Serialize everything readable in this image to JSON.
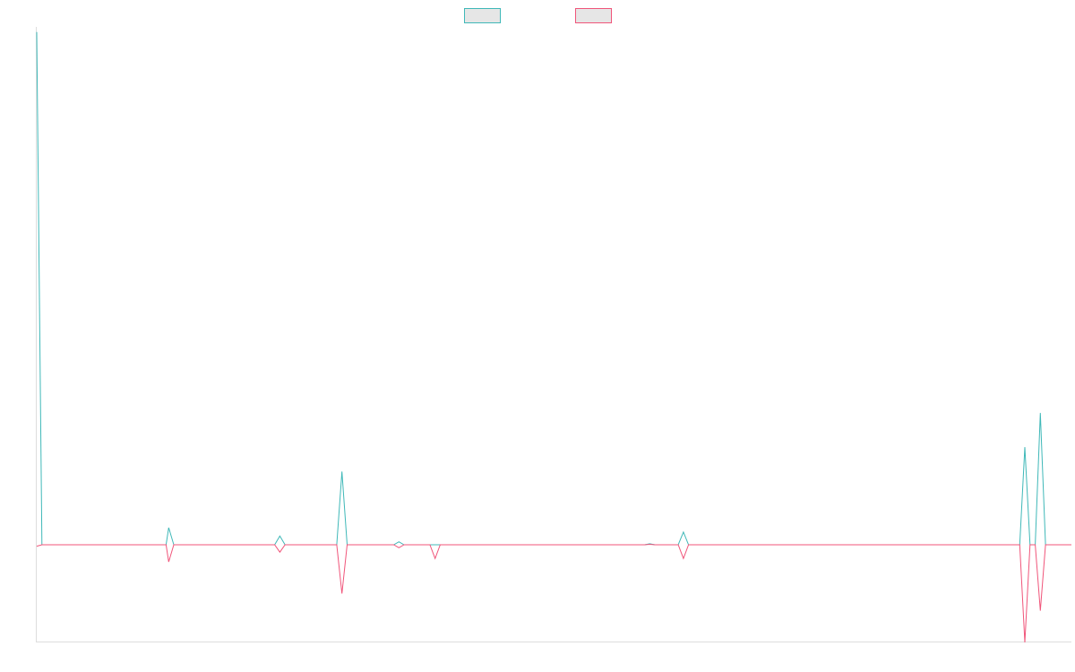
{
  "chart_data": {
    "type": "line",
    "title": "",
    "xlabel": "",
    "ylabel": "",
    "grid": false,
    "legend_position": "top-center",
    "x_range": [
      0,
      40
    ],
    "ylim": [
      -20,
      105
    ],
    "colors": {
      "axis": "#dddddd"
    },
    "series": [
      {
        "color": "#3fb8b8",
        "points": [
          [
            0,
            105
          ],
          [
            0.2,
            0
          ],
          [
            5,
            0
          ],
          [
            5.1,
            3.5
          ],
          [
            5.3,
            0
          ],
          [
            9.2,
            0
          ],
          [
            9.4,
            1.8
          ],
          [
            9.6,
            0
          ],
          [
            11.6,
            0
          ],
          [
            11.8,
            15
          ],
          [
            12,
            0
          ],
          [
            13.8,
            0
          ],
          [
            14,
            0.6
          ],
          [
            14.2,
            0
          ],
          [
            23.5,
            0
          ],
          [
            23.7,
            0.2
          ],
          [
            23.9,
            0
          ],
          [
            24.8,
            0
          ],
          [
            25,
            2.6
          ],
          [
            25.2,
            0
          ],
          [
            38,
            0
          ],
          [
            38.2,
            20
          ],
          [
            38.4,
            0
          ],
          [
            38.6,
            0
          ],
          [
            38.8,
            27
          ],
          [
            39,
            0
          ],
          [
            40,
            0
          ]
        ]
      },
      {
        "color": "#f0557a",
        "points": [
          [
            0,
            -0.3
          ],
          [
            0.2,
            0
          ],
          [
            5,
            0
          ],
          [
            5.1,
            -3.5
          ],
          [
            5.3,
            0
          ],
          [
            9.2,
            0
          ],
          [
            9.4,
            -1.5
          ],
          [
            9.6,
            0
          ],
          [
            11.6,
            0
          ],
          [
            11.8,
            -10
          ],
          [
            12,
            0
          ],
          [
            13.8,
            0
          ],
          [
            14,
            -0.6
          ],
          [
            14.2,
            0
          ],
          [
            15.2,
            0
          ],
          [
            15.4,
            -2.8
          ],
          [
            15.6,
            0
          ],
          [
            23.5,
            0
          ],
          [
            23.7,
            0.1
          ],
          [
            23.9,
            0
          ],
          [
            24.8,
            0
          ],
          [
            25,
            -2.8
          ],
          [
            25.2,
            0
          ],
          [
            38,
            0
          ],
          [
            38.2,
            -20
          ],
          [
            38.4,
            0
          ],
          [
            38.6,
            0
          ],
          [
            38.8,
            -13.5
          ],
          [
            39,
            0
          ],
          [
            40,
            0
          ]
        ]
      }
    ]
  }
}
